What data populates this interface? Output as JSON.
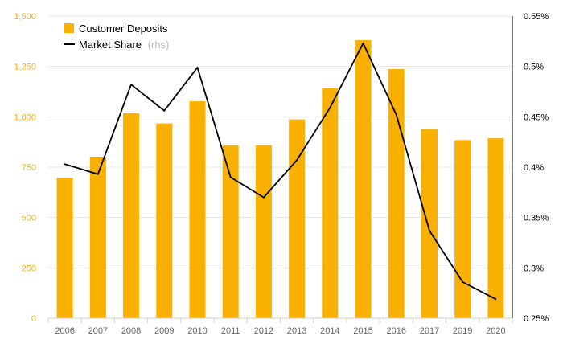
{
  "chart_data": {
    "type": "bar",
    "categories": [
      "2006",
      "2007",
      "2008",
      "2009",
      "2010",
      "2011",
      "2012",
      "2013",
      "2014",
      "2015",
      "2016",
      "2017",
      "2019",
      "2020"
    ],
    "series": [
      {
        "name": "Customer Deposits",
        "type": "bar",
        "axis": "left",
        "values": [
          697,
          802,
          1018,
          967,
          1077,
          859,
          859,
          987,
          1142,
          1380,
          1237,
          940,
          884,
          893
        ]
      },
      {
        "name": "Market Share",
        "name_suffix": "(rhs)",
        "type": "line",
        "axis": "right",
        "values": [
          0.403,
          0.393,
          0.482,
          0.456,
          0.499,
          0.39,
          0.37,
          0.407,
          0.459,
          0.523,
          0.452,
          0.337,
          0.286,
          0.269
        ]
      }
    ],
    "left_axis": {
      "ylim": [
        0,
        1500
      ],
      "ticks": [
        0,
        250,
        500,
        750,
        1000,
        1250,
        1500
      ],
      "tick_labels": [
        "0",
        "250",
        "500",
        "750",
        "1,000",
        "1,250",
        "1,500"
      ]
    },
    "right_axis": {
      "ylim": [
        0.25,
        0.55
      ],
      "ticks": [
        0.25,
        0.3,
        0.35,
        0.4,
        0.45,
        0.5,
        0.55
      ],
      "tick_labels": [
        "0.25%",
        "0.3%",
        "0.35%",
        "0.4%",
        "0.45%",
        "0.5%",
        "0.55%"
      ]
    },
    "legend_position": "top-left",
    "grid": true,
    "colors": {
      "bar": "#f9b000",
      "line": "#000000",
      "left_tick": "#f9b000",
      "right_tick": "#000000",
      "x_tick": "#666666",
      "grid": "#e6e6e6",
      "rhs_note": "#bbbbbb"
    }
  }
}
